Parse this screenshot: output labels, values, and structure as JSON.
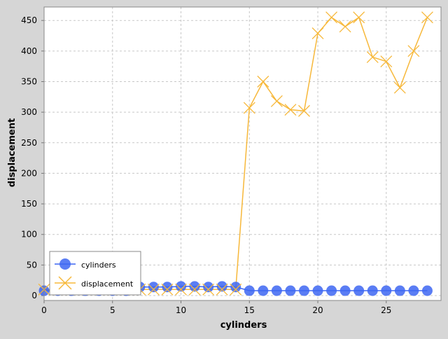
{
  "chart_data": {
    "type": "line",
    "xlabel": "cylinders",
    "ylabel": "displacement",
    "xlim": [
      0,
      29
    ],
    "ylim": [
      -8,
      472
    ],
    "x_ticks": [
      0,
      5,
      10,
      15,
      20,
      25
    ],
    "y_ticks": [
      0,
      50,
      100,
      150,
      200,
      250,
      300,
      350,
      400,
      450
    ],
    "grid": true,
    "legend_position": "bottom-left",
    "series": [
      {
        "name": "cylinders",
        "color": "#3d66f2",
        "marker": "circle",
        "x": [
          0,
          1,
          2,
          3,
          4,
          5,
          6,
          7,
          8,
          9,
          10,
          11,
          12,
          13,
          14,
          15,
          16,
          17,
          18,
          19,
          20,
          21,
          22,
          23,
          24,
          25,
          26,
          27,
          28
        ],
        "y": [
          8,
          8,
          8,
          8,
          8,
          8,
          8,
          14,
          14,
          14,
          15,
          15,
          14,
          15,
          14,
          8,
          8,
          8,
          8,
          8,
          8,
          8,
          8,
          8,
          8,
          8,
          8,
          8,
          8
        ]
      },
      {
        "name": "displacement",
        "color": "#f7b83a",
        "marker": "x",
        "x": [
          0,
          1,
          2,
          3,
          4,
          5,
          6,
          7,
          8,
          9,
          10,
          11,
          12,
          13,
          14,
          15,
          16,
          17,
          18,
          19,
          20,
          21,
          22,
          23,
          24,
          25,
          26,
          27,
          28
        ],
        "y": [
          10,
          10,
          10,
          10,
          10,
          10,
          10,
          10,
          10,
          10,
          10,
          10,
          10,
          10,
          10,
          307,
          350,
          318,
          304,
          302,
          429,
          455,
          440,
          455,
          390,
          383,
          340,
          400,
          455
        ]
      }
    ]
  }
}
